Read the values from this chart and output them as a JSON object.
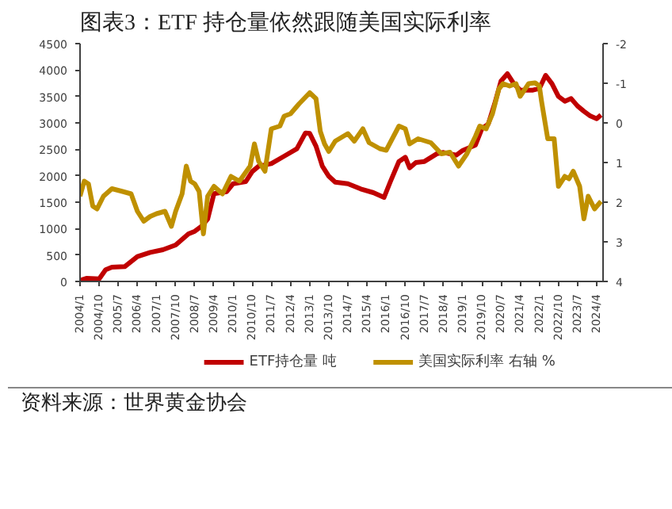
{
  "chart_data": {
    "type": "line",
    "title": "图表3：ETF 持仓量依然跟随美国实际利率",
    "annotations": [
      "资料来源：世界黄金协会"
    ],
    "xlim": [
      "2004-01",
      "2024-07"
    ],
    "xticks": [
      {
        "value": "2004-01",
        "label": "2004/1"
      },
      {
        "value": "2004-10",
        "label": "2004/10"
      },
      {
        "value": "2005-07",
        "label": "2005/7"
      },
      {
        "value": "2006-04",
        "label": "2006/4"
      },
      {
        "value": "2007-01",
        "label": "2007/1"
      },
      {
        "value": "2007-10",
        "label": "2007/10"
      },
      {
        "value": "2008-07",
        "label": "2008/7"
      },
      {
        "value": "2009-04",
        "label": "2009/4"
      },
      {
        "value": "2010-01",
        "label": "2010/1"
      },
      {
        "value": "2010-10",
        "label": "2010/10"
      },
      {
        "value": "2011-07",
        "label": "2011/7"
      },
      {
        "value": "2012-04",
        "label": "2012/4"
      },
      {
        "value": "2013-01",
        "label": "2013/1"
      },
      {
        "value": "2013-10",
        "label": "2013/10"
      },
      {
        "value": "2014-07",
        "label": "2014/7"
      },
      {
        "value": "2015-04",
        "label": "2015/4"
      },
      {
        "value": "2016-01",
        "label": "2016/1"
      },
      {
        "value": "2016-10",
        "label": "2016/10"
      },
      {
        "value": "2017-07",
        "label": "2017/7"
      },
      {
        "value": "2018-04",
        "label": "2018/4"
      },
      {
        "value": "2019-01",
        "label": "2019/1"
      },
      {
        "value": "2019-10",
        "label": "2019/10"
      },
      {
        "value": "2020-07",
        "label": "2020/7"
      },
      {
        "value": "2021-04",
        "label": "2021/4"
      },
      {
        "value": "2022-01",
        "label": "2022/1"
      },
      {
        "value": "2022-10",
        "label": "2022/10"
      },
      {
        "value": "2023-07",
        "label": "2023/7"
      },
      {
        "value": "2024-04",
        "label": "2024/4"
      }
    ],
    "ylim": [
      0,
      4500
    ],
    "yticks": [
      0,
      500,
      1000,
      1500,
      2000,
      2500,
      3000,
      3500,
      4000,
      4500
    ],
    "y2lim": [
      4,
      -2
    ],
    "y2ticks": [
      -2,
      -1,
      0,
      1,
      2,
      3,
      4
    ],
    "grid": false,
    "legend": "bottom",
    "series": [
      {
        "name": "ETF持仓量 吨",
        "color": "#c00000",
        "x": [
          "2004-01",
          "2004-04",
          "2004-10",
          "2005-01",
          "2005-04",
          "2005-10",
          "2006-04",
          "2006-10",
          "2007-04",
          "2007-10",
          "2008-04",
          "2008-07",
          "2008-10",
          "2009-01",
          "2009-04",
          "2009-10",
          "2010-01",
          "2010-07",
          "2010-10",
          "2011-01",
          "2011-07",
          "2012-01",
          "2012-07",
          "2012-11",
          "2013-01",
          "2013-04",
          "2013-07",
          "2013-10",
          "2014-01",
          "2014-07",
          "2015-01",
          "2015-07",
          "2015-12",
          "2016-03",
          "2016-07",
          "2016-10",
          "2016-12",
          "2017-03",
          "2017-07",
          "2018-01",
          "2018-04",
          "2018-10",
          "2019-01",
          "2019-07",
          "2019-10",
          "2020-01",
          "2020-04",
          "2020-07",
          "2020-10",
          "2021-01",
          "2021-04",
          "2021-10",
          "2022-01",
          "2022-04",
          "2022-07",
          "2022-10",
          "2023-01",
          "2023-04",
          "2023-07",
          "2023-10",
          "2024-01",
          "2024-04",
          "2024-06"
        ],
        "values": [
          20,
          60,
          50,
          220,
          270,
          280,
          470,
          550,
          600,
          690,
          900,
          950,
          1040,
          1180,
          1660,
          1700,
          1850,
          1890,
          2080,
          2180,
          2230,
          2370,
          2510,
          2810,
          2800,
          2560,
          2180,
          1990,
          1880,
          1850,
          1750,
          1680,
          1590,
          1890,
          2270,
          2350,
          2150,
          2250,
          2270,
          2420,
          2440,
          2390,
          2480,
          2580,
          2890,
          2980,
          3360,
          3790,
          3930,
          3740,
          3620,
          3620,
          3650,
          3900,
          3740,
          3500,
          3410,
          3460,
          3320,
          3220,
          3130,
          3080,
          3150
        ]
      },
      {
        "name": "美国实际利率 右轴 %",
        "color": "#bf9000",
        "axis": "y2",
        "x": [
          "2004-01",
          "2004-03",
          "2004-05",
          "2004-07",
          "2004-09",
          "2004-12",
          "2005-04",
          "2005-09",
          "2006-01",
          "2006-04",
          "2006-07",
          "2006-10",
          "2007-01",
          "2007-05",
          "2007-08",
          "2007-10",
          "2008-01",
          "2008-03",
          "2008-05",
          "2008-07",
          "2008-09",
          "2008-11",
          "2009-01",
          "2009-04",
          "2009-08",
          "2009-12",
          "2010-04",
          "2010-09",
          "2010-11",
          "2011-01",
          "2011-04",
          "2011-07",
          "2011-11",
          "2012-01",
          "2012-04",
          "2012-08",
          "2013-01",
          "2013-04",
          "2013-06",
          "2013-08",
          "2013-10",
          "2014-01",
          "2014-07",
          "2014-10",
          "2015-02",
          "2015-05",
          "2015-10",
          "2016-01",
          "2016-07",
          "2016-10",
          "2016-12",
          "2017-04",
          "2017-10",
          "2018-03",
          "2018-07",
          "2018-11",
          "2019-03",
          "2019-07",
          "2019-09",
          "2019-12",
          "2020-03",
          "2020-06",
          "2020-08",
          "2020-11",
          "2021-02",
          "2021-04",
          "2021-08",
          "2021-11",
          "2022-01",
          "2022-02",
          "2022-05",
          "2022-08",
          "2022-10",
          "2023-01",
          "2023-03",
          "2023-05",
          "2023-08",
          "2023-10",
          "2023-12",
          "2024-03",
          "2024-06"
        ],
        "values": [
          1.85,
          1.47,
          1.54,
          2.1,
          2.17,
          1.85,
          1.66,
          1.73,
          1.79,
          2.23,
          2.48,
          2.36,
          2.29,
          2.23,
          2.61,
          2.23,
          1.79,
          1.09,
          1.47,
          1.54,
          1.73,
          2.8,
          1.85,
          1.6,
          1.79,
          1.35,
          1.47,
          1.09,
          0.53,
          0.97,
          1.22,
          0.15,
          0.08,
          -0.17,
          -0.23,
          -0.48,
          -0.76,
          -0.61,
          0.21,
          0.53,
          0.72,
          0.46,
          0.27,
          0.46,
          0.15,
          0.5,
          0.65,
          0.69,
          0.08,
          0.15,
          0.53,
          0.4,
          0.5,
          0.78,
          0.74,
          1.09,
          0.78,
          0.34,
          0.08,
          0.15,
          -0.23,
          -0.86,
          -0.99,
          -0.93,
          -0.99,
          -0.67,
          -0.99,
          -1.01,
          -0.93,
          -0.55,
          0.4,
          0.4,
          1.6,
          1.35,
          1.41,
          1.22,
          1.6,
          2.42,
          1.85,
          2.17,
          1.98
        ]
      }
    ]
  }
}
